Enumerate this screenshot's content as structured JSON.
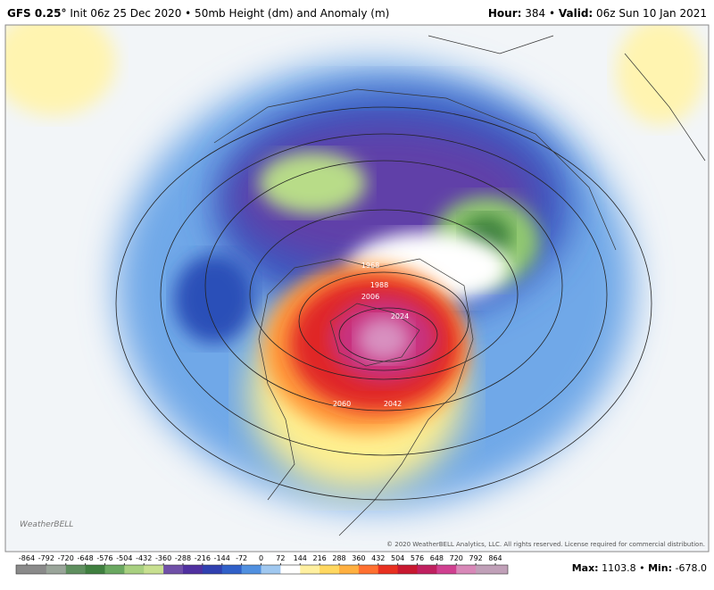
{
  "header": {
    "model": "GFS 0.25°",
    "init": "Init 06z 25 Dec 2020 • 50mb Height (dm) and Anomaly (m)",
    "hour_label": "Hour:",
    "hour": "384 •",
    "valid_label": "Valid:",
    "valid": "06z Sun 10 Jan 2021"
  },
  "map": {
    "contour_labels": [
      "1968",
      "1988",
      "2006",
      "2024",
      "2060",
      "2042"
    ],
    "logo": "WeatherBELL",
    "copyright": "© 2020 WeatherBELL Analytics, LLC. All rights reserved. License required for commercial distribution."
  },
  "colorbar": {
    "ticks": [
      -864,
      -792,
      -720,
      -648,
      -576,
      -504,
      -432,
      -360,
      -288,
      -216,
      -144,
      -72,
      0,
      72,
      144,
      216,
      288,
      360,
      432,
      504,
      576,
      648,
      720,
      792,
      864
    ],
    "colors": [
      "#8a8a8a",
      "#9aa59a",
      "#5f8f5f",
      "#3f7f3f",
      "#6aa860",
      "#a8d080",
      "#c8e090",
      "#7050a8",
      "#5030a0",
      "#3040b0",
      "#3060c8",
      "#5090e0",
      "#a0c8f0",
      "#ffffff",
      "#fff0a0",
      "#ffd860",
      "#ffb040",
      "#ff7030",
      "#e83020",
      "#c81830",
      "#c02060",
      "#d04090",
      "#d888b8",
      "#c0a0b8"
    ]
  },
  "stats": {
    "max_label": "Max:",
    "max": 1103.8,
    "min_label": "Min:",
    "min": {
      "value": -678,
      "label": "-678.0"
    }
  }
}
